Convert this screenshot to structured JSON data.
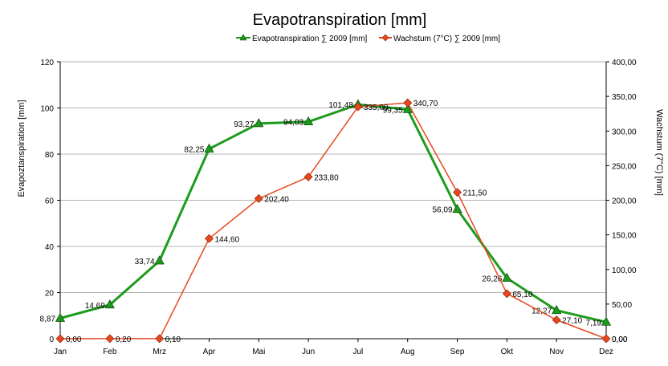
{
  "chart_data": {
    "type": "line",
    "title": "Evapotranspiration [mm]",
    "ylabel": "Evapoztanspiration [mm]",
    "y2label": "Wachstum (7°C) [mm]",
    "xlabel": "",
    "categories": [
      "Jan",
      "Feb",
      "Mrz",
      "Apr",
      "Mai",
      "Jun",
      "Jul",
      "Aug",
      "Sep",
      "Okt",
      "Nov",
      "Dez"
    ],
    "ylim": [
      0,
      120
    ],
    "y2lim": [
      0,
      400
    ],
    "yticks": [
      "0",
      "20",
      "40",
      "60",
      "80",
      "100",
      "120"
    ],
    "y2ticks": [
      "0,00",
      "50,00",
      "100,00",
      "150,00",
      "200,00",
      "250,00",
      "300,00",
      "350,00",
      "400,00"
    ],
    "grid": true,
    "legend_position": "top",
    "series": [
      {
        "name": "Evapotranspiration  ∑ 2009 [mm]",
        "axis": "left",
        "color": "#1e9a1e",
        "marker": "triangle",
        "values": [
          8.87,
          14.69,
          33.74,
          82.25,
          93.27,
          94.03,
          101.48,
          99.35,
          56.09,
          26.26,
          12.27,
          7.19
        ],
        "labels": [
          "8,87",
          "14,69",
          "33,74",
          "82,25",
          "93,27",
          "94,03",
          "101,48",
          "99,35",
          "56,09",
          "26,26",
          "12,27",
          "7,19"
        ]
      },
      {
        "name": "Wachstum (7°C) ∑ 2009 [mm]",
        "axis": "right",
        "color": "#e8471e",
        "marker": "diamond",
        "values": [
          0.0,
          0.2,
          0.1,
          144.6,
          202.4,
          233.8,
          335.0,
          340.7,
          211.5,
          65.1,
          27.1,
          0.0
        ],
        "labels": [
          "0,00",
          "0,20",
          "0,10",
          "144,60",
          "202,40",
          "233,80",
          "335,00",
          "340,70",
          "211,50",
          "65,10",
          "27,10",
          "0,00"
        ]
      }
    ]
  }
}
